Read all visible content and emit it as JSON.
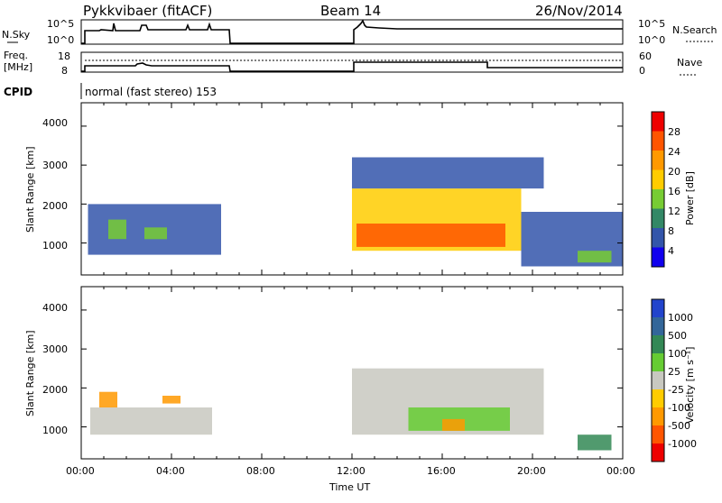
{
  "header": {
    "station": "Pykkvibaer (fitACF)",
    "beam": "Beam 14",
    "date": "26/Nov/2014"
  },
  "strips": {
    "nsky_label": "N.Sky",
    "nsky_ticks": [
      "10^5",
      "10^0"
    ],
    "nsearch_label": "N.Search",
    "nsearch_ticks": [
      "10^5",
      "10^0"
    ],
    "freq_label_1": "Freq.",
    "freq_label_2": "[MHz]",
    "freq_ticks": [
      "18",
      "8"
    ],
    "nave_label": "Nave",
    "nave_ticks": [
      "60",
      "0"
    ],
    "cpid_label": "CPID",
    "cpid_text": "normal (fast stereo) 153"
  },
  "axes": {
    "ylabel": "Slant Range [km]",
    "yticks": [
      "4000",
      "3000",
      "2000",
      "1000"
    ],
    "xticks": [
      "00:00",
      "04:00",
      "08:00",
      "12:00",
      "16:00",
      "20:00",
      "00:00"
    ],
    "xlabel": "Time UT"
  },
  "colorbars": {
    "power_title": "Power [dB]",
    "power_labels": [
      "28",
      "24",
      "20",
      "16",
      "12",
      "8",
      "4"
    ],
    "power_colors": [
      "#ee0000",
      "#ff5500",
      "#ff9900",
      "#ffcc00",
      "#77cc33",
      "#338866",
      "#3355aa",
      "#1100ee"
    ],
    "velocity_title": "Velocity [m s⁻¹]",
    "velocity_labels": [
      "1000",
      "500",
      "100",
      "25",
      "-25",
      "-100",
      "-500",
      "-1000"
    ],
    "velocity_colors": [
      "#2244cc",
      "#336699",
      "#338855",
      "#66cc33",
      "#c8c8c0",
      "#ffcc00",
      "#ff9900",
      "#ff5500",
      "#ee0000"
    ]
  },
  "chart_data": [
    {
      "type": "heatmap",
      "title": "Power [dB]",
      "xlabel": "Time UT",
      "ylabel": "Slant Range [km]",
      "xlim_hours": [
        0,
        24
      ],
      "ylim_km": [
        180,
        4600
      ],
      "color_levels_db": [
        4,
        8,
        12,
        16,
        20,
        24,
        28
      ],
      "data_gap_hours": [
        6.5,
        12.0
      ],
      "regions": [
        {
          "t_start_h": 0.3,
          "t_end_h": 6.2,
          "r_min_km": 700,
          "r_max_km": 2000,
          "value_db": 6
        },
        {
          "t_start_h": 1.2,
          "t_end_h": 2.0,
          "r_min_km": 1100,
          "r_max_km": 1600,
          "value_db": 14
        },
        {
          "t_start_h": 2.8,
          "t_end_h": 3.8,
          "r_min_km": 1100,
          "r_max_km": 1400,
          "value_db": 12
        },
        {
          "t_start_h": 12.0,
          "t_end_h": 19.5,
          "r_min_km": 800,
          "r_max_km": 2400,
          "value_db": 18
        },
        {
          "t_start_h": 12.2,
          "t_end_h": 18.8,
          "r_min_km": 900,
          "r_max_km": 1500,
          "value_db": 26
        },
        {
          "t_start_h": 12.0,
          "t_end_h": 20.5,
          "r_min_km": 2400,
          "r_max_km": 3200,
          "value_db": 6
        },
        {
          "t_start_h": 19.5,
          "t_end_h": 24.0,
          "r_min_km": 400,
          "r_max_km": 1800,
          "value_db": 6
        },
        {
          "t_start_h": 22.0,
          "t_end_h": 23.5,
          "r_min_km": 500,
          "r_max_km": 800,
          "value_db": 14
        }
      ]
    },
    {
      "type": "heatmap",
      "title": "Velocity [m s⁻¹]",
      "xlabel": "Time UT",
      "ylabel": "Slant Range [km]",
      "xlim_hours": [
        0,
        24
      ],
      "ylim_km": [
        180,
        4600
      ],
      "color_levels_ms": [
        1000,
        500,
        100,
        25,
        -25,
        -100,
        -500,
        -1000
      ],
      "data_gap_hours": [
        6.5,
        12.0
      ],
      "regions": [
        {
          "t_start_h": 0.4,
          "t_end_h": 5.8,
          "r_min_km": 800,
          "r_max_km": 1500,
          "value_ms": 0
        },
        {
          "t_start_h": 0.8,
          "t_end_h": 1.6,
          "r_min_km": 1500,
          "r_max_km": 1900,
          "value_ms": -300
        },
        {
          "t_start_h": 3.6,
          "t_end_h": 4.4,
          "r_min_km": 1600,
          "r_max_km": 1800,
          "value_ms": -300
        },
        {
          "t_start_h": 12.0,
          "t_end_h": 20.5,
          "r_min_km": 800,
          "r_max_km": 2500,
          "value_ms": 0
        },
        {
          "t_start_h": 14.5,
          "t_end_h": 19.0,
          "r_min_km": 900,
          "r_max_km": 1500,
          "value_ms": 60
        },
        {
          "t_start_h": 16.0,
          "t_end_h": 17.0,
          "r_min_km": 900,
          "r_max_km": 1200,
          "value_ms": -300
        },
        {
          "t_start_h": 22.0,
          "t_end_h": 23.5,
          "r_min_km": 400,
          "r_max_km": 800,
          "value_ms": 300
        }
      ]
    }
  ]
}
